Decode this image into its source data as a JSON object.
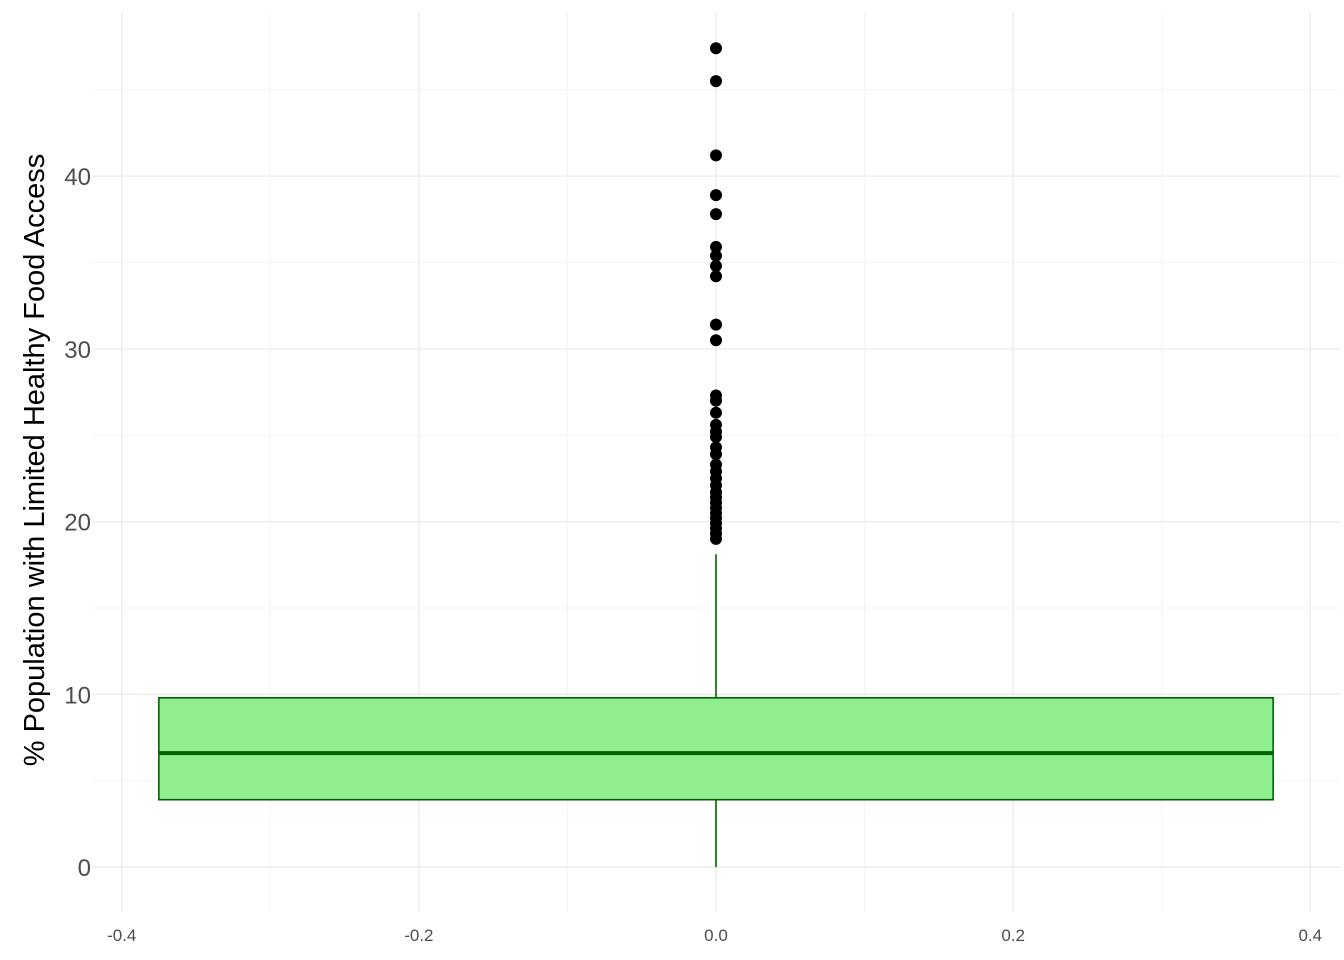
{
  "chart_data": {
    "type": "boxplot",
    "title": "",
    "xlabel": "",
    "ylabel": "% Population with Limited Healthy Food Access",
    "xlim": [
      -0.42,
      0.42
    ],
    "ylim": [
      -2.6,
      49.5
    ],
    "x_ticks": [
      -0.4,
      -0.2,
      0.0,
      0.2,
      0.4
    ],
    "x_tick_labels": [
      "-0.4",
      "-0.2",
      "0.0",
      "0.2",
      "0.4"
    ],
    "y_ticks": [
      0,
      10,
      20,
      30,
      40
    ],
    "y_tick_labels": [
      "0",
      "10",
      "20",
      "30",
      "40"
    ],
    "grid": true,
    "box": {
      "x_center": 0.0,
      "x_range": [
        -0.375,
        0.375
      ],
      "min": 0.0,
      "q1": 3.9,
      "median": 6.6,
      "q3": 9.8,
      "max": 18.1
    },
    "outliers": [
      19.0,
      19.3,
      19.6,
      19.9,
      20.2,
      20.5,
      20.8,
      21.1,
      21.4,
      21.7,
      22.1,
      22.5,
      22.9,
      23.3,
      23.9,
      24.3,
      24.9,
      25.2,
      25.6,
      26.3,
      27.0,
      27.3,
      30.5,
      31.4,
      34.2,
      34.8,
      35.4,
      35.9,
      37.8,
      38.9,
      41.2,
      45.5,
      47.4
    ],
    "colors": {
      "box_fill": "#90ee90",
      "box_stroke": "#006400",
      "outlier": "#000000",
      "grid_major": "#ebebeb",
      "grid_minor": "#f4f4f4"
    }
  }
}
